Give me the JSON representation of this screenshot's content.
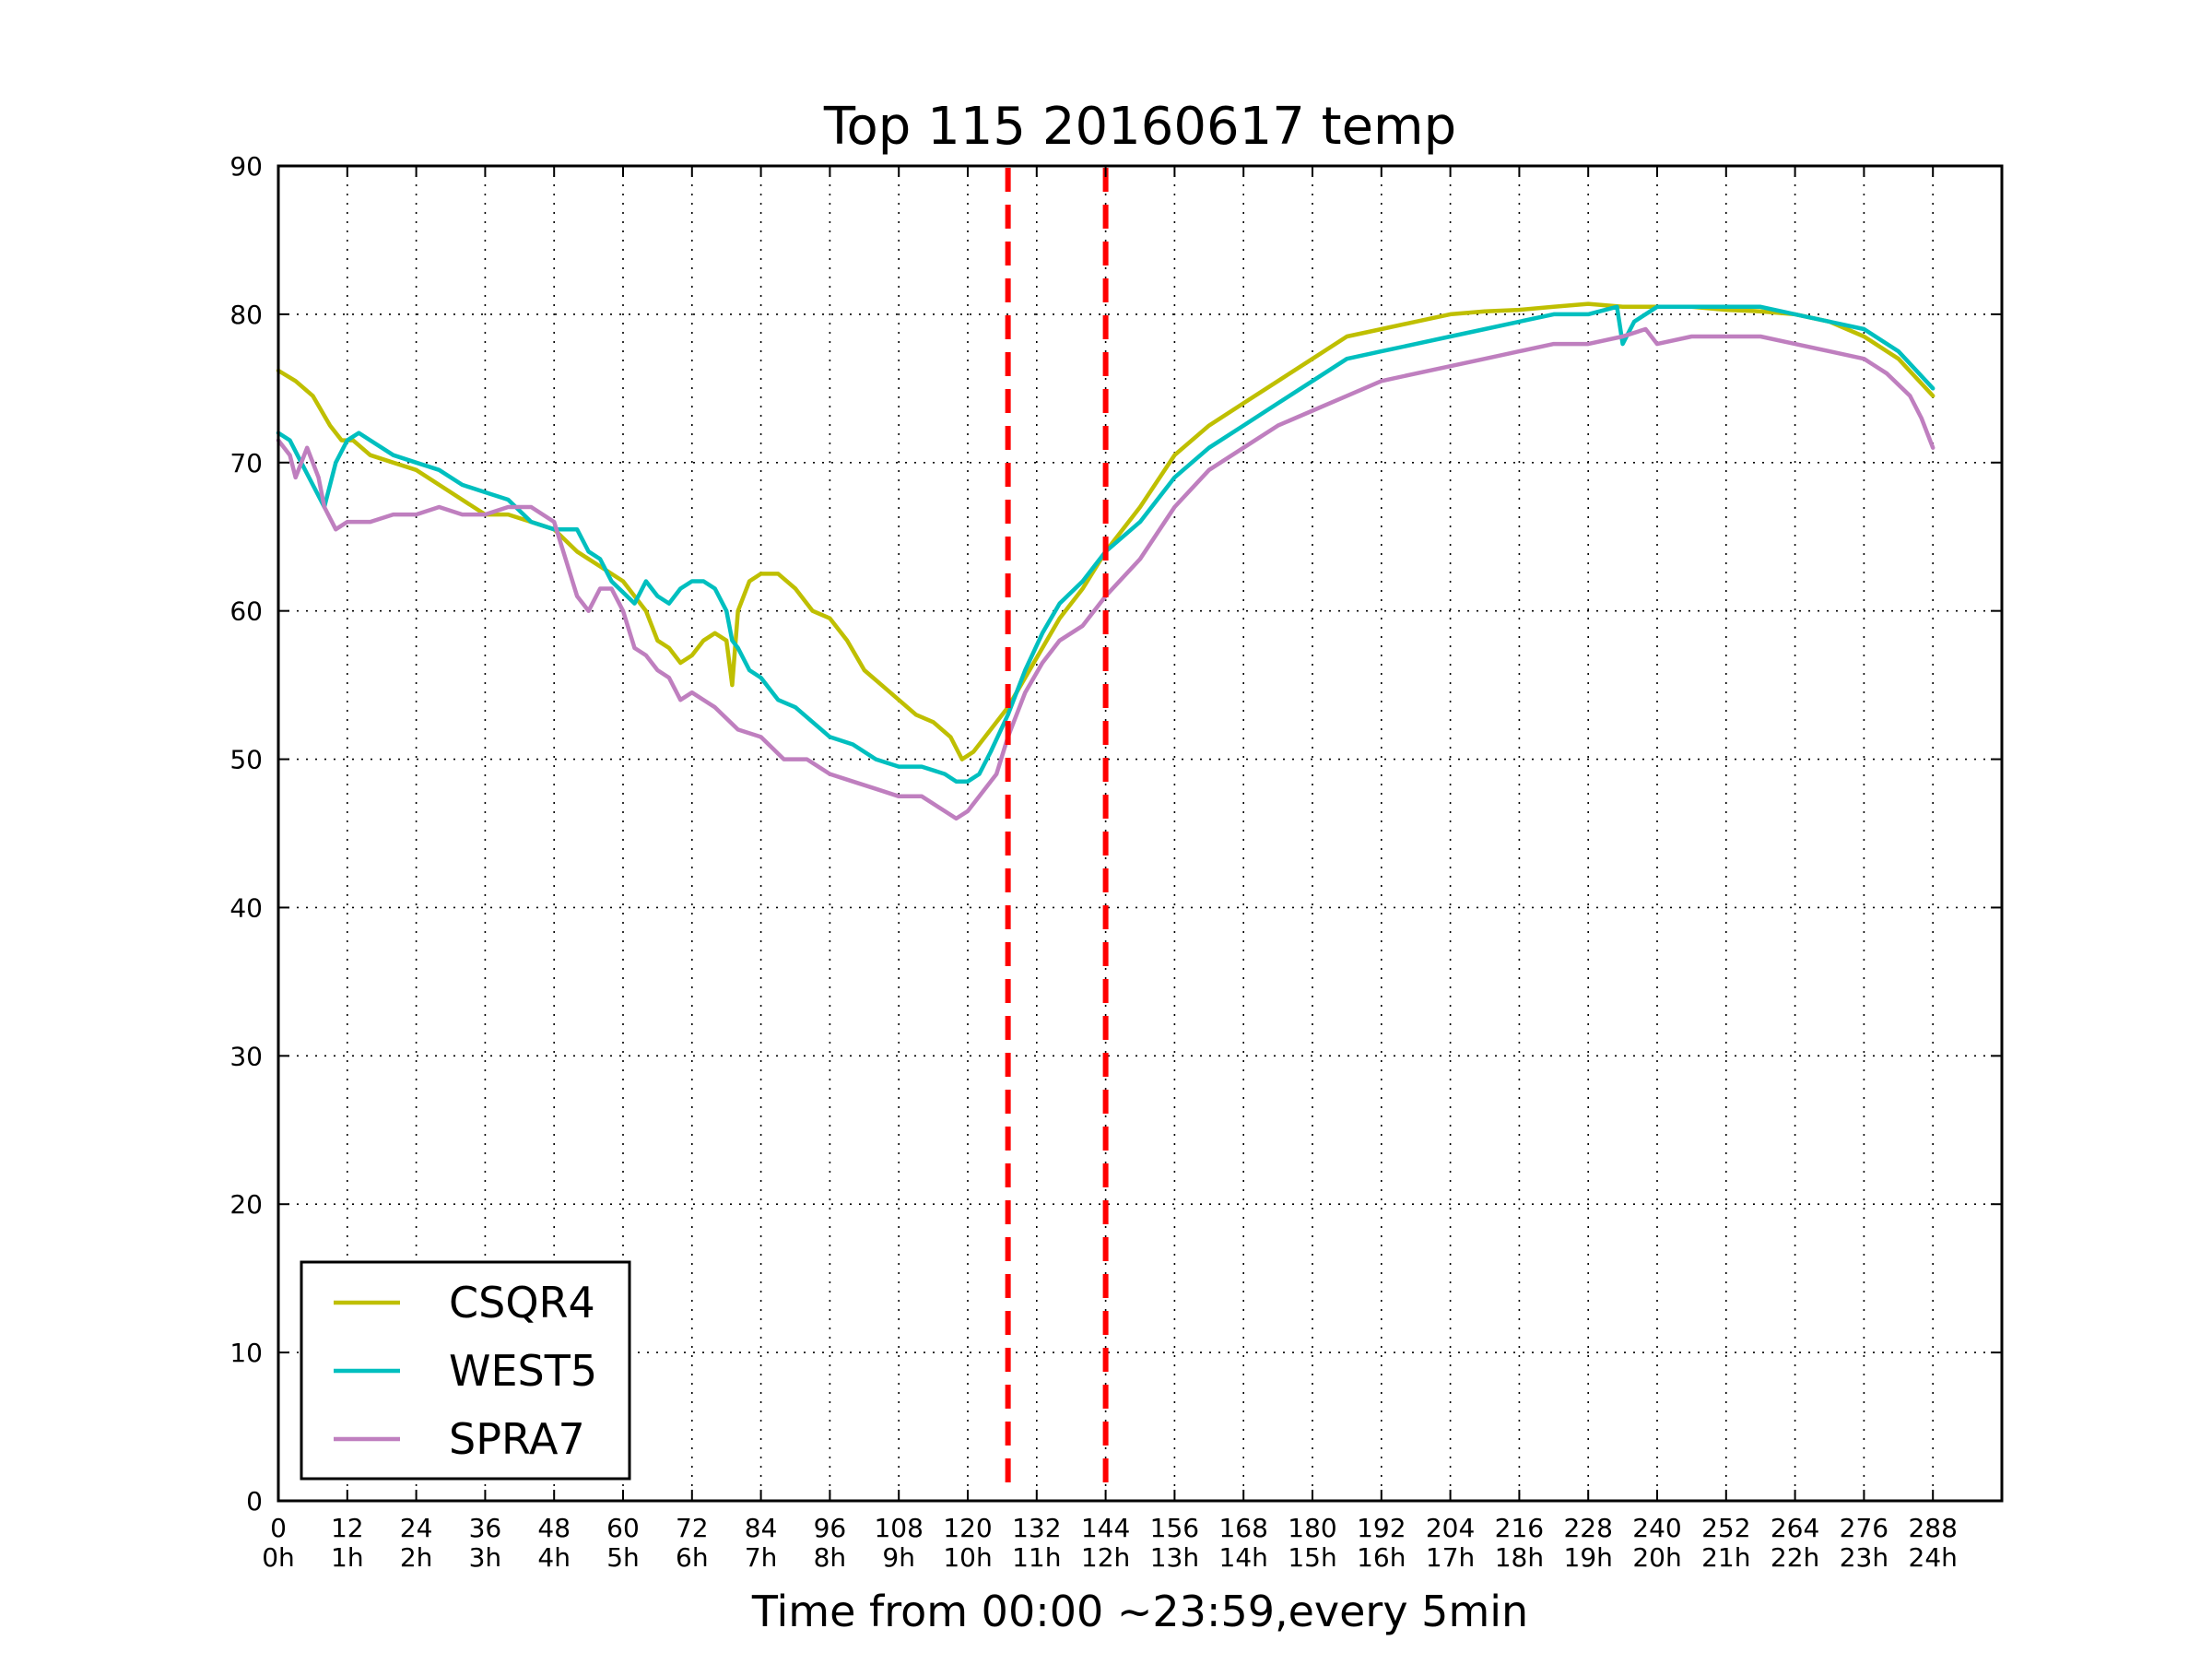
{
  "chart_data": {
    "type": "line",
    "title": "Top 115 20160617 temp",
    "xlabel": "Time from 00:00 ~23:59,every 5min",
    "ylabel": "",
    "xlim": [
      0,
      300
    ],
    "ylim": [
      0,
      90
    ],
    "grid": true,
    "legend_position": "lower-left",
    "x_ticks": [
      0,
      12,
      24,
      36,
      48,
      60,
      72,
      84,
      96,
      108,
      120,
      132,
      144,
      156,
      168,
      180,
      192,
      204,
      216,
      228,
      240,
      252,
      264,
      276,
      288
    ],
    "x_tick_labels": [
      "0",
      "12",
      "24",
      "36",
      "48",
      "60",
      "72",
      "84",
      "96",
      "108",
      "120",
      "132",
      "144",
      "156",
      "168",
      "180",
      "192",
      "204",
      "216",
      "228",
      "240",
      "252",
      "264",
      "276",
      "288"
    ],
    "x_tick_sublabels": [
      "0h",
      "1h",
      "2h",
      "3h",
      "4h",
      "5h",
      "6h",
      "7h",
      "8h",
      "9h",
      "10h",
      "11h",
      "12h",
      "13h",
      "14h",
      "15h",
      "16h",
      "17h",
      "18h",
      "19h",
      "20h",
      "21h",
      "22h",
      "23h",
      "24h"
    ],
    "y_ticks": [
      0,
      10,
      20,
      30,
      40,
      50,
      60,
      70,
      80,
      90
    ],
    "y_tick_labels": [
      "0",
      "10",
      "20",
      "30",
      "40",
      "50",
      "60",
      "70",
      "80",
      "90"
    ],
    "reference_lines": [
      {
        "x": 127,
        "color": "#ff0000",
        "style": "dashed"
      },
      {
        "x": 144,
        "color": "#ff0000",
        "style": "dashed"
      }
    ],
    "series": [
      {
        "name": "CSQR4",
        "color": "#bfbf00",
        "x": [
          0,
          3,
          6,
          9,
          11,
          13,
          16,
          20,
          24,
          30,
          36,
          40,
          44,
          48,
          52,
          56,
          60,
          64,
          66,
          68,
          70,
          72,
          74,
          76,
          78,
          79,
          80,
          82,
          84,
          87,
          90,
          93,
          96,
          99,
          102,
          105,
          108,
          111,
          114,
          117,
          119,
          121,
          124,
          127,
          130,
          133,
          136,
          140,
          144,
          150,
          156,
          162,
          168,
          174,
          180,
          186,
          192,
          198,
          204,
          210,
          216,
          222,
          228,
          234,
          240,
          246,
          252,
          258,
          264,
          270,
          276,
          282,
          288
        ],
        "y": [
          76.2,
          75.5,
          74.5,
          72.5,
          71.5,
          71.5,
          70.5,
          70,
          69.5,
          68,
          66.5,
          66.5,
          66,
          65.5,
          64,
          63,
          62,
          60,
          58,
          57.5,
          56.5,
          57,
          58,
          58.5,
          58,
          55,
          60,
          62,
          62.5,
          62.5,
          61.5,
          60,
          59.5,
          58,
          56,
          55,
          54,
          53,
          52.5,
          51.5,
          50,
          50.5,
          52,
          53.5,
          55.5,
          57.5,
          59.5,
          61.5,
          64,
          67,
          70.5,
          72.5,
          74,
          75.5,
          77,
          78.5,
          79,
          79.5,
          80,
          80.2,
          80.3,
          80.5,
          80.7,
          80.5,
          80.5,
          80.5,
          80.3,
          80.2,
          80,
          79.5,
          78.5,
          77,
          74.5
        ]
      },
      {
        "name": "WEST5",
        "color": "#00bfbf",
        "x": [
          0,
          2,
          4,
          6,
          8,
          10,
          12,
          14,
          16,
          20,
          24,
          28,
          32,
          36,
          40,
          44,
          48,
          52,
          54,
          56,
          58,
          62,
          64,
          66,
          68,
          70,
          72,
          74,
          76,
          78,
          79,
          80,
          82,
          84,
          87,
          90,
          93,
          96,
          100,
          104,
          108,
          112,
          116,
          118,
          120,
          122,
          124,
          127,
          130,
          133,
          136,
          140,
          144,
          150,
          156,
          162,
          168,
          174,
          180,
          186,
          192,
          198,
          204,
          210,
          216,
          222,
          228,
          233,
          234,
          236,
          240,
          246,
          252,
          258,
          264,
          270,
          276,
          282,
          288
        ],
        "y": [
          72,
          71.5,
          70,
          68.5,
          67,
          70,
          71.5,
          72,
          71.5,
          70.5,
          70,
          69.5,
          68.5,
          68,
          67.5,
          66,
          65.5,
          65.5,
          64,
          63.5,
          62,
          60.5,
          62,
          61,
          60.5,
          61.5,
          62,
          62,
          61.5,
          60,
          58,
          57.5,
          56,
          55.5,
          54,
          53.5,
          52.5,
          51.5,
          51,
          50,
          49.5,
          49.5,
          49,
          48.5,
          48.5,
          49,
          50.5,
          53,
          56,
          58.5,
          60.5,
          62,
          64,
          66,
          69,
          71,
          72.5,
          74,
          75.5,
          77,
          77.5,
          78,
          78.5,
          79,
          79.5,
          80,
          80,
          80.5,
          78,
          79.5,
          80.5,
          80.5,
          80.5,
          80.5,
          80,
          79.5,
          79,
          77.5,
          75
        ]
      },
      {
        "name": "SPRA7",
        "color": "#bf7fbf",
        "x": [
          0,
          2,
          3,
          5,
          7,
          8,
          10,
          12,
          16,
          20,
          24,
          28,
          32,
          36,
          40,
          44,
          48,
          50,
          52,
          54,
          56,
          58,
          60,
          62,
          64,
          66,
          68,
          70,
          72,
          76,
          80,
          84,
          88,
          92,
          96,
          100,
          104,
          108,
          112,
          116,
          118,
          120,
          122,
          125,
          127,
          130,
          133,
          136,
          140,
          144,
          150,
          156,
          162,
          168,
          174,
          180,
          186,
          192,
          198,
          204,
          210,
          216,
          222,
          228,
          234,
          238,
          240,
          246,
          252,
          258,
          264,
          270,
          276,
          280,
          284,
          286,
          288
        ],
        "y": [
          71.5,
          70.5,
          69,
          71,
          69,
          67,
          65.5,
          66,
          66,
          66.5,
          66.5,
          67,
          66.5,
          66.5,
          67,
          67,
          66,
          63.5,
          61,
          60,
          61.5,
          61.5,
          60,
          57.5,
          57,
          56,
          55.5,
          54,
          54.5,
          53.5,
          52,
          51.5,
          50,
          50,
          49,
          48.5,
          48,
          47.5,
          47.5,
          46.5,
          46,
          46.5,
          47.5,
          49,
          51.5,
          54.5,
          56.5,
          58,
          59,
          61,
          63.5,
          67,
          69.5,
          71,
          72.5,
          73.5,
          74.5,
          75.5,
          76,
          76.5,
          77,
          77.5,
          78,
          78,
          78.5,
          79,
          78,
          78.5,
          78.5,
          78.5,
          78,
          77.5,
          77,
          76,
          74.5,
          73,
          71
        ]
      }
    ]
  }
}
